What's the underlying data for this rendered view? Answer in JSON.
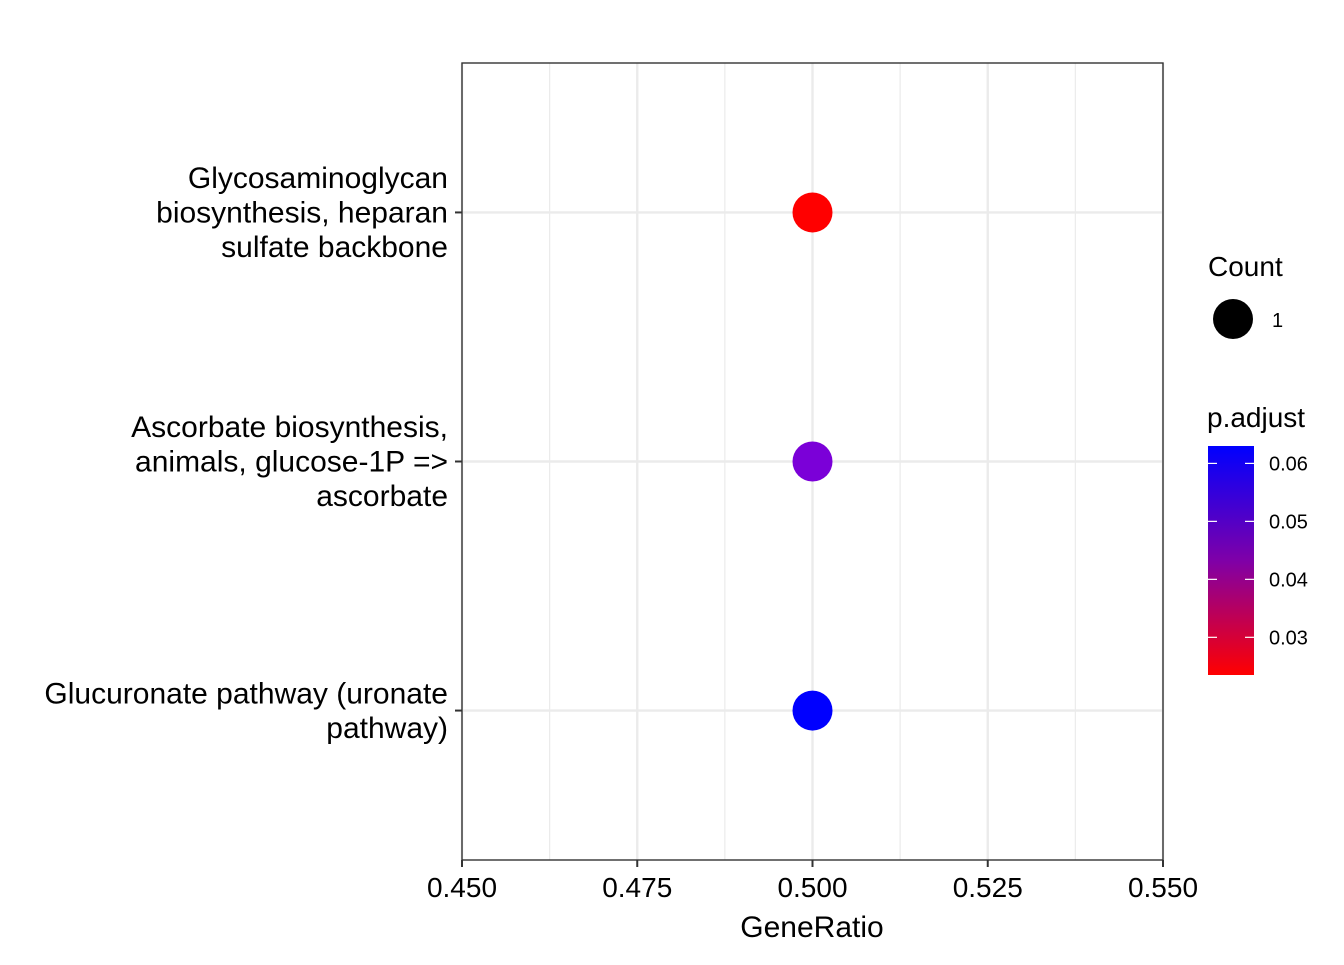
{
  "chart_data": {
    "type": "scatter",
    "title": "",
    "xlabel": "GeneRatio",
    "ylabel": "",
    "xlim": [
      0.45,
      0.55
    ],
    "x_ticks": [
      "0.450",
      "0.475",
      "0.500",
      "0.525",
      "0.550"
    ],
    "x_tick_values": [
      0.45,
      0.475,
      0.5,
      0.525,
      0.55
    ],
    "categories": [
      [
        "Glycosaminoglycan",
        "biosynthesis, heparan",
        "sulfate backbone"
      ],
      [
        "Ascorbate biosynthesis,",
        "animals, glucose-1P =>",
        "ascorbate"
      ],
      [
        "Glucuronate pathway (uronate",
        "pathway)"
      ]
    ],
    "points": [
      {
        "category_index": 0,
        "x": 0.5,
        "count": 1,
        "p_adjust": 0.0235,
        "color": "#ff0000"
      },
      {
        "category_index": 1,
        "x": 0.5,
        "count": 1,
        "p_adjust": 0.0525,
        "color": "#7b00d8"
      },
      {
        "category_index": 2,
        "x": 0.5,
        "count": 1,
        "p_adjust": 0.063,
        "color": "#0000ff"
      }
    ],
    "grid": true,
    "legend": {
      "placement": "right",
      "size_title": "Count",
      "size_labels": [
        "1"
      ],
      "color_title": "p.adjust",
      "color_ticks": [
        "0.06",
        "0.05",
        "0.04",
        "0.03"
      ],
      "color_tick_values": [
        0.06,
        0.05,
        0.04,
        0.03
      ],
      "color_range": [
        0.0235,
        0.063
      ],
      "color_low": "#ff0000",
      "color_high": "#0000ff"
    }
  }
}
